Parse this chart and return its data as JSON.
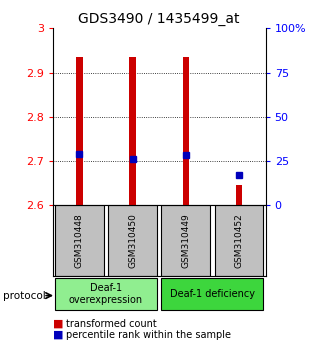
{
  "title": "GDS3490 / 1435499_at",
  "samples": [
    "GSM310448",
    "GSM310450",
    "GSM310449",
    "GSM310452"
  ],
  "red_bar_values": [
    2.935,
    2.935,
    2.935,
    2.645
  ],
  "blue_dot_values": [
    2.715,
    2.705,
    2.713,
    2.668
  ],
  "ylim": [
    2.6,
    3.0
  ],
  "yticks_left": [
    2.6,
    2.7,
    2.8,
    2.9,
    3.0
  ],
  "ytick_labels_left": [
    "2.6",
    "2.7",
    "2.8",
    "2.9",
    "3"
  ],
  "yticks_right_pct": [
    0,
    25,
    50,
    75,
    100
  ],
  "ytick_labels_right": [
    "0",
    "25",
    "50",
    "75",
    "100%"
  ],
  "bar_bottom": 2.6,
  "group1_label": "Deaf-1\noverexpression",
  "group2_label": "Deaf-1 deficiency",
  "group1_color": "#90EE90",
  "group2_color": "#3DD63D",
  "protocol_label": "protocol",
  "legend_red_label": "transformed count",
  "legend_blue_label": "percentile rank within the sample",
  "red_color": "#CC0000",
  "blue_color": "#0000BB",
  "bar_width": 0.12,
  "title_fontsize": 10,
  "tick_fontsize": 8,
  "sample_bg_color": "#C0C0C0"
}
